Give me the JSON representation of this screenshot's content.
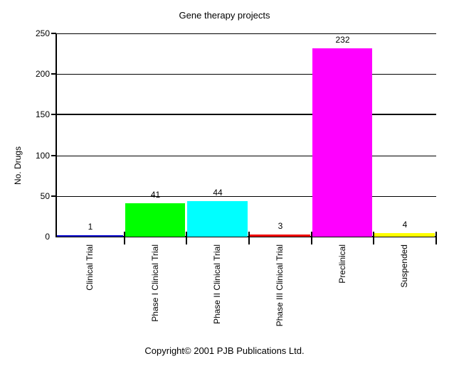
{
  "page": {
    "title": "Gene therapy projects",
    "footer": "Copyright© 2001 PJB Publications Ltd."
  },
  "chart_data": {
    "type": "bar",
    "title": "Gene therapy projects",
    "xlabel": "",
    "ylabel": "No. Drugs",
    "categories": [
      "Clinical Trial",
      "Phase I Clinical Trial",
      "Phase II Clinical Trial",
      "Phase III Clinical Trial",
      "Preclinical",
      "Suspended"
    ],
    "values": [
      1,
      41,
      44,
      3,
      232,
      4
    ],
    "bar_colors": [
      "#0000CC",
      "#00FF00",
      "#00FFFF",
      "#EE0000",
      "#FF00FF",
      "#FFFF00"
    ],
    "value_label_color": "#000000",
    "axis_color": "#000000",
    "background_color": "#FFFFFF",
    "ylim": [
      0,
      250
    ],
    "yticks": [
      0,
      50,
      100,
      150,
      200,
      250
    ],
    "bold_gridline_value": 150,
    "grid": "horizontal",
    "legend_position": "none",
    "bar_value_labels_shown": true,
    "x_tick_label_rotation_degrees": 90,
    "footer": "Copyright© 2001 PJB Publications Ltd."
  }
}
